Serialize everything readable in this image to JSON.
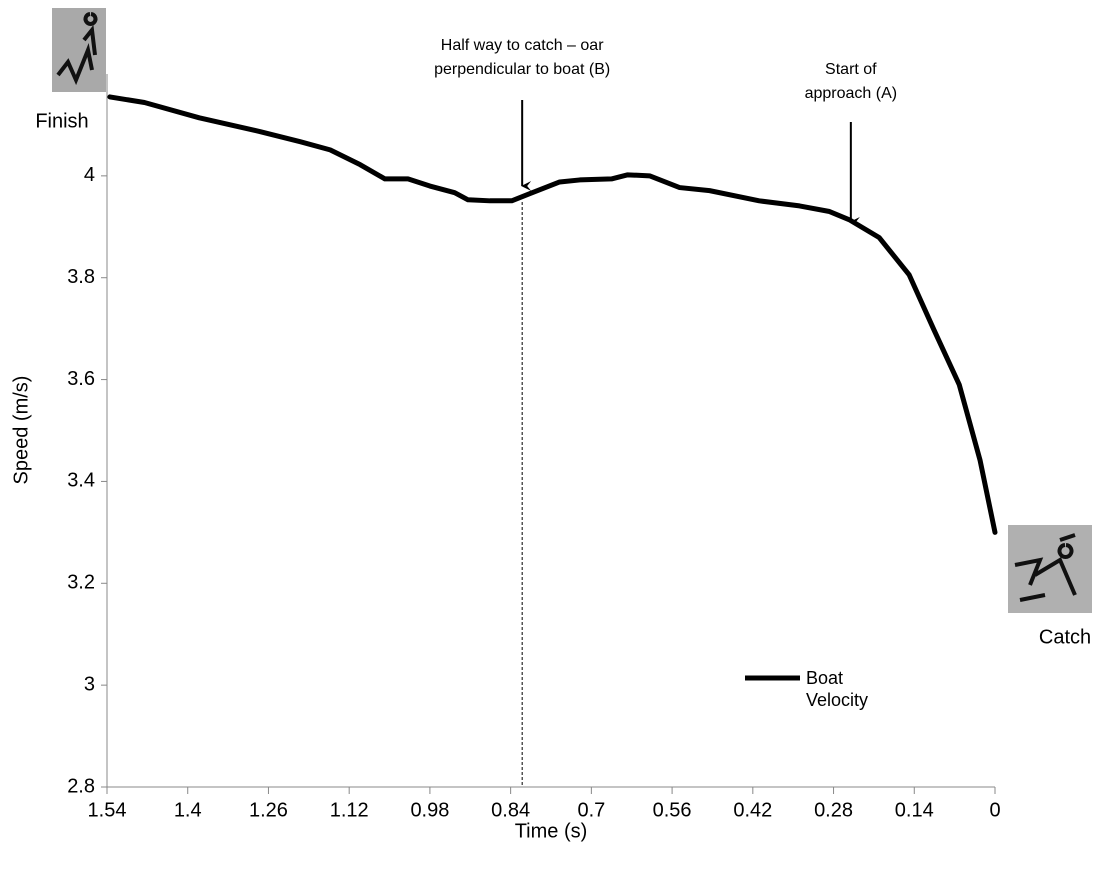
{
  "chart_data": {
    "type": "line",
    "x_label": "Time (s)",
    "y_label": "Speed (m/s)",
    "finish_label": "Finish",
    "catch_label": "Catch",
    "xlim": [
      1.54,
      0
    ],
    "xticks": [
      1.54,
      1.4,
      1.26,
      1.12,
      0.98,
      0.84,
      0.7,
      0.56,
      0.42,
      0.28,
      0.14,
      0
    ],
    "ylim": [
      2.8,
      4.2
    ],
    "yticks": [
      2.8,
      3,
      3.2,
      3.4,
      3.6,
      3.8,
      4
    ],
    "x": [
      1.535,
      1.475,
      1.38,
      1.275,
      1.205,
      1.153,
      1.101,
      1.058,
      1.018,
      0.98,
      0.937,
      0.914,
      0.876,
      0.838,
      0.807,
      0.755,
      0.72,
      0.665,
      0.637,
      0.599,
      0.547,
      0.495,
      0.409,
      0.339,
      0.287,
      0.253,
      0.201,
      0.149,
      0.106,
      0.062,
      0.026,
      0
    ],
    "series": [
      {
        "name": "Boat Velocity",
        "color": "#000000",
        "values": [
          4.155,
          4.144,
          4.114,
          4.087,
          4.067,
          4.051,
          4.022,
          3.994,
          3.994,
          3.98,
          3.967,
          3.953,
          3.951,
          3.951,
          3.965,
          3.988,
          3.992,
          3.994,
          4.002,
          4.0,
          3.977,
          3.971,
          3.951,
          3.941,
          3.93,
          3.914,
          3.879,
          3.806,
          3.698,
          3.59,
          3.442,
          3.3
        ]
      }
    ],
    "annotations": [
      {
        "text": "Half way to catch – oar perpendicular to boat (B)",
        "x": 0.82
      },
      {
        "text": "Start of approach (A)",
        "x": 0.25
      }
    ]
  }
}
